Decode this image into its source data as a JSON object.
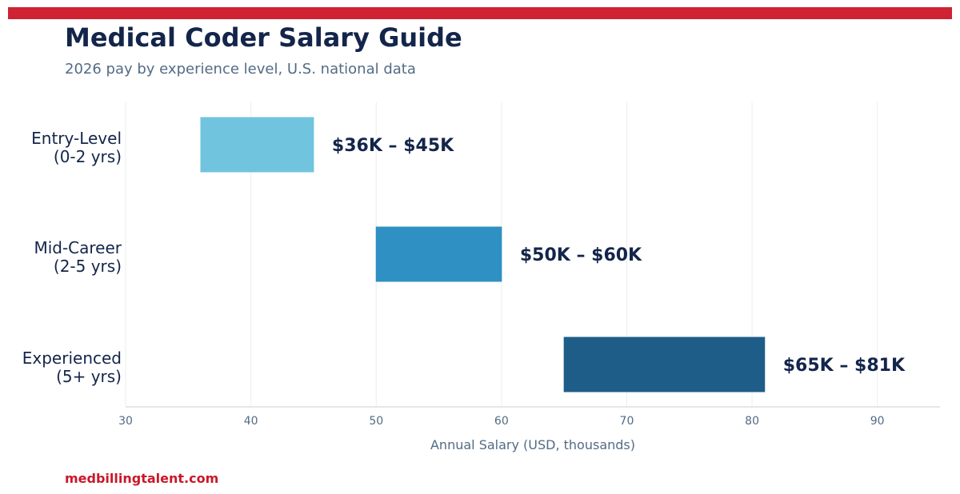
{
  "header": {
    "title": "Medical Coder Salary Guide",
    "subtitle": "2026 pay by experience level, U.S. national data"
  },
  "footer": {
    "source": "medbillingtalent.com"
  },
  "colors": {
    "accent_bar": "#cf2233",
    "title": "#13254a",
    "footer": "#c8192a",
    "grid": "#ebedf0",
    "axis": "#d3d7dc",
    "tick_label": "#536b85"
  },
  "chart_data": {
    "type": "bar",
    "orientation": "horizontal-range",
    "xlabel": "Annual Salary (USD, thousands)",
    "ylabel": "",
    "xlim": [
      30,
      95
    ],
    "xticks": [
      30,
      40,
      50,
      60,
      70,
      80,
      90
    ],
    "grid": true,
    "categories": [
      {
        "line1": "Entry-Level",
        "line2": "(0-2 yrs)"
      },
      {
        "line1": "Mid-Career",
        "line2": "(2-5 yrs)"
      },
      {
        "line1": "Experienced",
        "line2": "(5+ yrs)"
      }
    ],
    "ranges": [
      {
        "low": 36,
        "high": 45,
        "label": "$36K – $45K",
        "color": "#70c4de"
      },
      {
        "low": 50,
        "high": 60,
        "label": "$50K – $60K",
        "color": "#2f90c3"
      },
      {
        "low": 65,
        "high": 81,
        "label": "$65K – $81K",
        "color": "#1f5d89"
      }
    ]
  }
}
